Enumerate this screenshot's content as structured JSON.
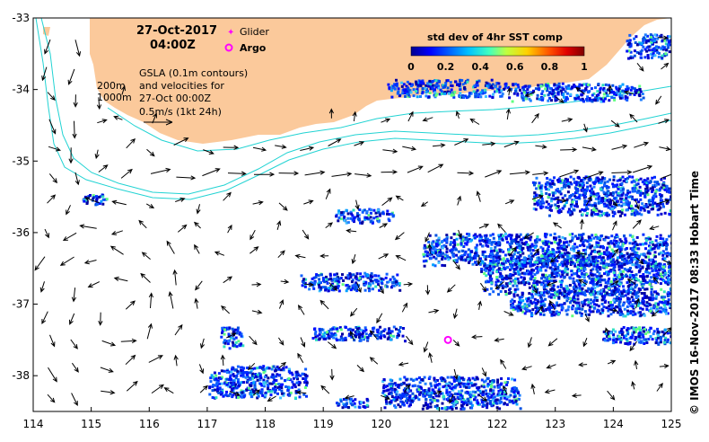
{
  "map": {
    "lon_range": [
      114,
      125
    ],
    "lat_range": [
      -38.5,
      -33
    ],
    "x_ticks": [
      "114",
      "115",
      "116",
      "117",
      "118",
      "119",
      "120",
      "121",
      "122",
      "123",
      "124",
      "125"
    ],
    "y_ticks": [
      "-33",
      "-34",
      "-35",
      "-36",
      "-37",
      "-38"
    ],
    "land_color": "#fbc99b",
    "contour_color": "#22d3d3",
    "arrow_color": "#000000"
  },
  "header": {
    "date": "27-Oct-2017",
    "time": "04:00Z"
  },
  "legend": {
    "glider_label": "Glider",
    "argo_label": "Argo",
    "glider_color": "#ff00ff",
    "argo_color": "#ff00ff"
  },
  "annotation": {
    "depth_200": "200m",
    "depth_1000": "1000m",
    "line1": "GSLA (0.1m contours)",
    "line2": "and velocities for",
    "line3": "27-Oct 00:00Z",
    "line4": "0.5m/s (1kt 24h)"
  },
  "colorbar": {
    "title": "std dev of 4hr SST comp",
    "ticks": [
      "0",
      "0.2",
      "0.4",
      "0.6",
      "0.8",
      "1"
    ],
    "colors": [
      "#00008f",
      "#0000ff",
      "#0080ff",
      "#00ffff",
      "#80ff80",
      "#ffff00",
      "#ff8000",
      "#ff0000",
      "#800000"
    ]
  },
  "credit": "© IMOS 16-Nov-2017 08:33 Hobart Time",
  "argo_float": {
    "lon": 121.15,
    "lat": -37.5
  },
  "sst_patches": [
    {
      "lon": 120.1,
      "lat": -33.85,
      "w": 2.1,
      "h": 0.25
    },
    {
      "lon": 122.2,
      "lat": -33.9,
      "w": 2.3,
      "h": 0.25
    },
    {
      "lon": 124.2,
      "lat": -33.2,
      "w": 0.8,
      "h": 0.35
    },
    {
      "lon": 122.6,
      "lat": -35.2,
      "w": 2.4,
      "h": 0.55
    },
    {
      "lon": 120.7,
      "lat": -36.0,
      "w": 4.3,
      "h": 0.45
    },
    {
      "lon": 121.7,
      "lat": -36.3,
      "w": 3.3,
      "h": 0.55
    },
    {
      "lon": 122.2,
      "lat": -36.8,
      "w": 2.8,
      "h": 0.35
    },
    {
      "lon": 123.8,
      "lat": -37.3,
      "w": 1.2,
      "h": 0.25
    },
    {
      "lon": 119.2,
      "lat": -35.65,
      "w": 1.0,
      "h": 0.2
    },
    {
      "lon": 118.6,
      "lat": -36.55,
      "w": 1.7,
      "h": 0.25
    },
    {
      "lon": 117.2,
      "lat": -37.3,
      "w": 0.4,
      "h": 0.3
    },
    {
      "lon": 117.0,
      "lat": -37.85,
      "w": 1.7,
      "h": 0.45
    },
    {
      "lon": 118.8,
      "lat": -37.3,
      "w": 1.6,
      "h": 0.2
    },
    {
      "lon": 120.0,
      "lat": -38.0,
      "w": 2.4,
      "h": 0.45
    },
    {
      "lon": 119.2,
      "lat": -38.3,
      "w": 0.6,
      "h": 0.15
    },
    {
      "lon": 114.8,
      "lat": -35.45,
      "w": 0.5,
      "h": 0.15
    }
  ]
}
